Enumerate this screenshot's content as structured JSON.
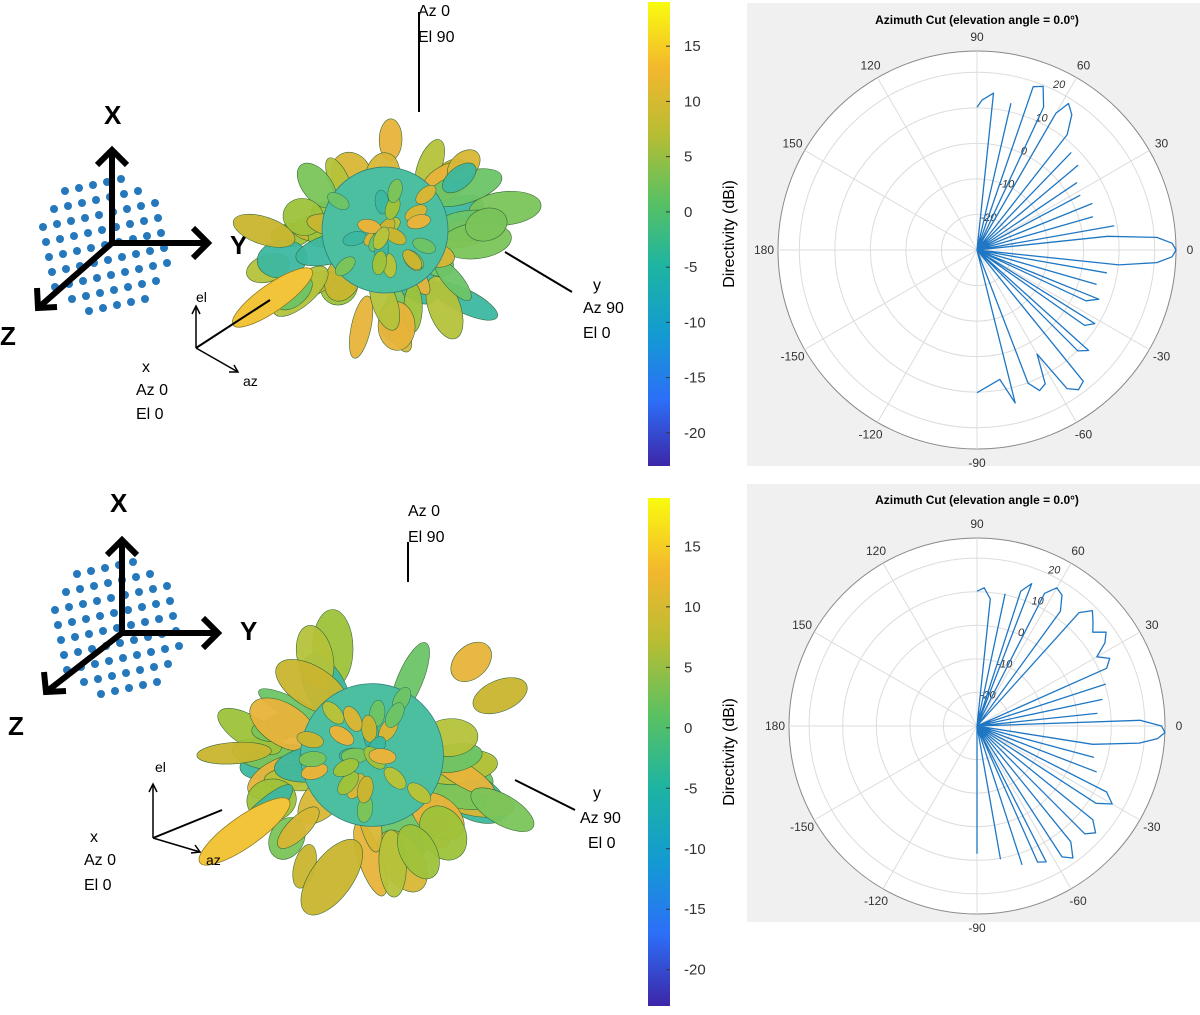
{
  "panels": [
    {
      "axis_labels": {
        "x": "X",
        "y": "Y",
        "z": "Z"
      },
      "view_labels": {
        "top_az": "Az 0",
        "top_el": "El 90",
        "right_axis": "y",
        "right_az": "Az 90",
        "right_el": "El 0",
        "left_axis": "x",
        "left_az": "Az 0",
        "left_el": "El 0",
        "el": "el",
        "az": "az"
      },
      "colorbar": {
        "label": "Directivity (dBi)",
        "ticks": [
          "15",
          "10",
          "5",
          "0",
          "-5",
          "-10",
          "-15",
          "-20"
        ],
        "tick_values": [
          15,
          10,
          5,
          0,
          -5,
          -10,
          -15,
          -20
        ],
        "range": [
          -23,
          19
        ],
        "colors": [
          "#3d26a8",
          "#2c6ff8",
          "#139bd1",
          "#1db4a2",
          "#59c162",
          "#b7bd33",
          "#f3b72e",
          "#f9fb0e"
        ]
      },
      "chart_data": {
        "type": "line",
        "projection": "polar",
        "title": "Azimuth Cut (elevation angle = 0.0°)",
        "angle_ticks": [
          "0",
          "30",
          "60",
          "90",
          "120",
          "150",
          "180",
          "-150",
          "-120",
          "-90",
          "-60",
          "-30"
        ],
        "radial_ticks": [
          "20",
          "10",
          "0",
          "-10",
          "-20"
        ],
        "radial_range": [
          -30,
          23
        ],
        "series": [
          {
            "x": [
              -90,
              -80,
              -76,
              -72,
              -69,
              -66,
              -63,
              -60,
              -57,
              -54,
              -51,
              -48,
              -45,
              -42,
              -38,
              -35,
              -32,
              -28,
              -25,
              -22,
              -19,
              -16,
              -13,
              -10,
              -8,
              -6,
              -4,
              -2,
              0,
              2,
              4,
              6,
              8,
              10,
              13,
              16,
              19,
              22,
              25,
              28,
              31,
              34,
              37,
              40,
              43,
              46,
              49,
              52,
              55,
              58,
              60,
              62,
              65,
              68,
              71,
              74,
              77,
              80,
              84,
              88,
              90
            ],
            "y": [
              8,
              5,
              12,
              -30,
              8,
              11,
              10,
              2,
              14,
              16,
              15,
              -30,
              8,
              10,
              -30,
              5,
              7,
              -30,
              2,
              5,
              -30,
              3,
              -30,
              5,
              -30,
              8,
              18,
              22,
              23,
              22,
              18,
              5,
              -30,
              7,
              -30,
              2,
              -30,
              3,
              -30,
              1,
              -30,
              2,
              -30,
              5,
              -30,
              6,
              -30,
              9,
              14,
              16,
              12,
              -30,
              12,
              17,
              16,
              -30,
              10,
              -30,
              12,
              10,
              8
            ]
          }
        ]
      }
    },
    {
      "axis_labels": {
        "x": "X",
        "y": "Y",
        "z": "Z"
      },
      "view_labels": {
        "top_az": "Az 0",
        "top_el": "El 90",
        "right_axis": "y",
        "right_az": "Az 90",
        "right_el": "El 0",
        "left_axis": "x",
        "left_az": "Az 0",
        "left_el": "El 0",
        "el": "el",
        "az": "az"
      },
      "colorbar": {
        "label": "Directivity (dBi)",
        "ticks": [
          "15",
          "10",
          "5",
          "0",
          "-5",
          "-10",
          "-15",
          "-20"
        ],
        "tick_values": [
          15,
          10,
          5,
          0,
          -5,
          -10,
          -15,
          -20
        ],
        "range": [
          -23,
          19
        ],
        "colors": [
          "#3d26a8",
          "#2c6ff8",
          "#139bd1",
          "#1db4a2",
          "#59c162",
          "#b7bd33",
          "#f3b72e",
          "#f9fb0e"
        ]
      },
      "chart_data": {
        "type": "line",
        "projection": "polar",
        "title": "Azimuth Cut (elevation angle = 0.0°)",
        "angle_ticks": [
          "0",
          "30",
          "60",
          "90",
          "120",
          "150",
          "180",
          "-150",
          "-120",
          "-90",
          "-60",
          "-30"
        ],
        "radial_ticks": [
          "20",
          "10",
          "0",
          "-10",
          "-20"
        ],
        "radial_range": [
          -30,
          23
        ],
        "series": [
          {
            "x": [
              -90,
              -84,
              -80,
              -76,
              -72,
              -69,
              -66,
              -63,
              -60,
              -57,
              -54,
              -51,
              -48,
              -45,
              -42,
              -39,
              -36,
              -33,
              -30,
              -27,
              -24,
              -21,
              -18,
              -15,
              -12,
              -9,
              -6,
              -4,
              -2,
              0,
              2,
              4,
              6,
              9,
              12,
              15,
              18,
              21,
              24,
              27,
              30,
              33,
              36,
              39,
              42,
              45,
              48,
              51,
              54,
              57,
              60,
              63,
              66,
              69,
              72,
              75,
              78,
              81,
              84,
              87,
              90
            ],
            "y": [
              6,
              -30,
              8,
              -30,
              11,
              -30,
              12,
              13,
              -30,
              14,
              16,
              12,
              -30,
              13,
              15,
              12,
              -30,
              10,
              14,
              11,
              -30,
              6,
              -30,
              4,
              -30,
              3,
              16,
              21,
              23,
              22,
              16,
              -30,
              4,
              -30,
              6,
              -30,
              8,
              -30,
              10,
              12,
              9,
              13,
              15,
              12,
              14,
              16,
              13,
              -30,
              10,
              14,
              15,
              12,
              -30,
              13,
              10,
              -30,
              8,
              -30,
              6,
              9,
              8
            ]
          }
        ]
      }
    }
  ]
}
